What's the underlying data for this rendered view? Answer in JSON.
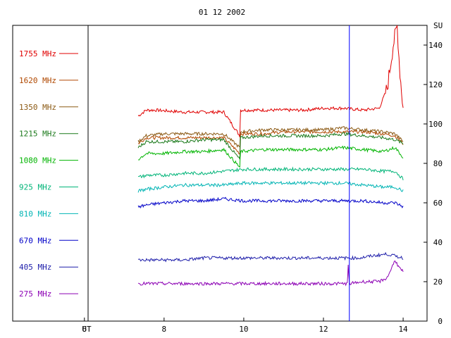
{
  "chart_data": {
    "type": "line",
    "title": "01 12 2002",
    "y_unit": "SU",
    "x_axis_label": "UT",
    "xlim": [
      4.2,
      14.6
    ],
    "ylim": [
      0,
      150
    ],
    "x_ticks": [
      6,
      8,
      10,
      12,
      14
    ],
    "y_ticks": [
      0,
      20,
      40,
      60,
      80,
      100,
      120,
      140
    ],
    "grid": false,
    "legend_position": "left",
    "marker_time": 12.65,
    "series": [
      {
        "name": "1755 MHz",
        "color": "#e00000",
        "points": [
          [
            7.35,
            104
          ],
          [
            7.55,
            107
          ],
          [
            7.8,
            107
          ],
          [
            8.5,
            106
          ],
          [
            9.0,
            106
          ],
          [
            9.5,
            106
          ],
          [
            9.9,
            94
          ],
          [
            9.92,
            107
          ],
          [
            10.5,
            107
          ],
          [
            11.0,
            107
          ],
          [
            11.5,
            107
          ],
          [
            12.0,
            108
          ],
          [
            12.5,
            108
          ],
          [
            13.0,
            107
          ],
          [
            13.4,
            108
          ],
          [
            13.6,
            118
          ],
          [
            13.75,
            140
          ],
          [
            13.85,
            150
          ],
          [
            13.92,
            126
          ],
          [
            14.0,
            108
          ]
        ]
      },
      {
        "name": "1620 MHz",
        "color": "#b04800",
        "points": [
          [
            7.35,
            90
          ],
          [
            7.55,
            93
          ],
          [
            8.0,
            93
          ],
          [
            8.5,
            93
          ],
          [
            9.0,
            93
          ],
          [
            9.5,
            93
          ],
          [
            9.9,
            85
          ],
          [
            9.92,
            95
          ],
          [
            10.5,
            95
          ],
          [
            11.0,
            96
          ],
          [
            11.5,
            96
          ],
          [
            12.0,
            96
          ],
          [
            12.5,
            96
          ],
          [
            13.0,
            96
          ],
          [
            13.5,
            95
          ],
          [
            13.8,
            94
          ],
          [
            14.0,
            90
          ]
        ]
      },
      {
        "name": "1350 MHz",
        "color": "#8c5a14",
        "points": [
          [
            7.35,
            91
          ],
          [
            7.55,
            94
          ],
          [
            8.0,
            95
          ],
          [
            8.5,
            95
          ],
          [
            9.0,
            95
          ],
          [
            9.5,
            95
          ],
          [
            9.9,
            88
          ],
          [
            9.92,
            96
          ],
          [
            10.5,
            97
          ],
          [
            11.0,
            97
          ],
          [
            11.5,
            97
          ],
          [
            12.0,
            97
          ],
          [
            12.5,
            98
          ],
          [
            13.0,
            97
          ],
          [
            13.5,
            96
          ],
          [
            13.8,
            95
          ],
          [
            14.0,
            91
          ]
        ]
      },
      {
        "name": "1215 MHz",
        "color": "#1c7a1c",
        "points": [
          [
            7.35,
            88
          ],
          [
            7.55,
            91
          ],
          [
            8.0,
            91
          ],
          [
            8.5,
            91
          ],
          [
            9.0,
            92
          ],
          [
            9.5,
            92
          ],
          [
            9.9,
            82
          ],
          [
            9.92,
            93
          ],
          [
            10.5,
            94
          ],
          [
            11.0,
            94
          ],
          [
            11.5,
            94
          ],
          [
            12.0,
            94
          ],
          [
            12.5,
            95
          ],
          [
            13.0,
            94
          ],
          [
            13.5,
            93
          ],
          [
            13.8,
            92
          ],
          [
            14.0,
            90
          ]
        ]
      },
      {
        "name": "1080 MHz",
        "color": "#00b400",
        "points": [
          [
            7.35,
            82
          ],
          [
            7.55,
            85
          ],
          [
            8.0,
            85
          ],
          [
            8.5,
            86
          ],
          [
            9.0,
            86
          ],
          [
            9.5,
            87
          ],
          [
            9.9,
            78
          ],
          [
            9.92,
            86
          ],
          [
            10.5,
            87
          ],
          [
            11.0,
            87
          ],
          [
            11.5,
            87
          ],
          [
            12.0,
            87
          ],
          [
            12.5,
            88
          ],
          [
            13.0,
            87
          ],
          [
            13.5,
            86
          ],
          [
            13.8,
            88
          ],
          [
            14.0,
            83
          ]
        ]
      },
      {
        "name": "925 MHz",
        "color": "#00b478",
        "points": [
          [
            7.35,
            73
          ],
          [
            7.6,
            74
          ],
          [
            8.0,
            74
          ],
          [
            8.5,
            75
          ],
          [
            9.0,
            75
          ],
          [
            9.5,
            76
          ],
          [
            10.0,
            77
          ],
          [
            10.5,
            77
          ],
          [
            11.0,
            77
          ],
          [
            11.5,
            77
          ],
          [
            12.0,
            77
          ],
          [
            12.5,
            77
          ],
          [
            13.0,
            77
          ],
          [
            13.5,
            76
          ],
          [
            13.8,
            76
          ],
          [
            14.0,
            72
          ]
        ]
      },
      {
        "name": "810 MHz",
        "color": "#00b4b4",
        "points": [
          [
            7.35,
            66
          ],
          [
            7.6,
            67
          ],
          [
            8.0,
            68
          ],
          [
            8.5,
            69
          ],
          [
            9.0,
            69
          ],
          [
            9.5,
            69
          ],
          [
            10.0,
            70
          ],
          [
            10.5,
            70
          ],
          [
            11.0,
            70
          ],
          [
            11.5,
            70
          ],
          [
            12.0,
            70
          ],
          [
            12.5,
            70
          ],
          [
            13.0,
            69
          ],
          [
            13.5,
            68
          ],
          [
            13.8,
            68
          ],
          [
            14.0,
            66
          ]
        ]
      },
      {
        "name": "670 MHz",
        "color": "#0000c8",
        "points": [
          [
            7.35,
            58
          ],
          [
            7.6,
            59
          ],
          [
            8.0,
            60
          ],
          [
            8.5,
            61
          ],
          [
            9.0,
            61
          ],
          [
            9.5,
            62
          ],
          [
            10.0,
            61
          ],
          [
            10.5,
            61
          ],
          [
            11.0,
            61
          ],
          [
            11.5,
            61
          ],
          [
            12.0,
            61
          ],
          [
            12.5,
            61
          ],
          [
            13.0,
            61
          ],
          [
            13.5,
            60
          ],
          [
            13.8,
            60
          ],
          [
            14.0,
            58
          ]
        ]
      },
      {
        "name": "405 MHz",
        "color": "#1e1eaa",
        "points": [
          [
            7.35,
            31
          ],
          [
            7.6,
            31
          ],
          [
            8.0,
            31
          ],
          [
            8.5,
            31
          ],
          [
            9.0,
            32
          ],
          [
            9.5,
            32
          ],
          [
            10.0,
            32
          ],
          [
            10.5,
            32
          ],
          [
            11.0,
            32
          ],
          [
            11.5,
            32
          ],
          [
            12.0,
            32
          ],
          [
            12.5,
            32
          ],
          [
            12.9,
            32
          ],
          [
            13.2,
            33
          ],
          [
            13.6,
            34
          ],
          [
            13.8,
            33
          ],
          [
            14.0,
            32
          ]
        ]
      },
      {
        "name": "275 MHz",
        "color": "#8c00b4",
        "points": [
          [
            7.35,
            19
          ],
          [
            7.6,
            19
          ],
          [
            8.0,
            19
          ],
          [
            8.5,
            19
          ],
          [
            9.0,
            19
          ],
          [
            9.5,
            19
          ],
          [
            10.0,
            19
          ],
          [
            10.5,
            19
          ],
          [
            11.0,
            19
          ],
          [
            11.5,
            19
          ],
          [
            12.0,
            19
          ],
          [
            12.5,
            19
          ],
          [
            12.6,
            19
          ],
          [
            12.62,
            28
          ],
          [
            12.65,
            19
          ],
          [
            13.0,
            20
          ],
          [
            13.4,
            20
          ],
          [
            13.6,
            22
          ],
          [
            13.8,
            31
          ],
          [
            13.9,
            27
          ],
          [
            14.0,
            25
          ]
        ]
      }
    ]
  }
}
